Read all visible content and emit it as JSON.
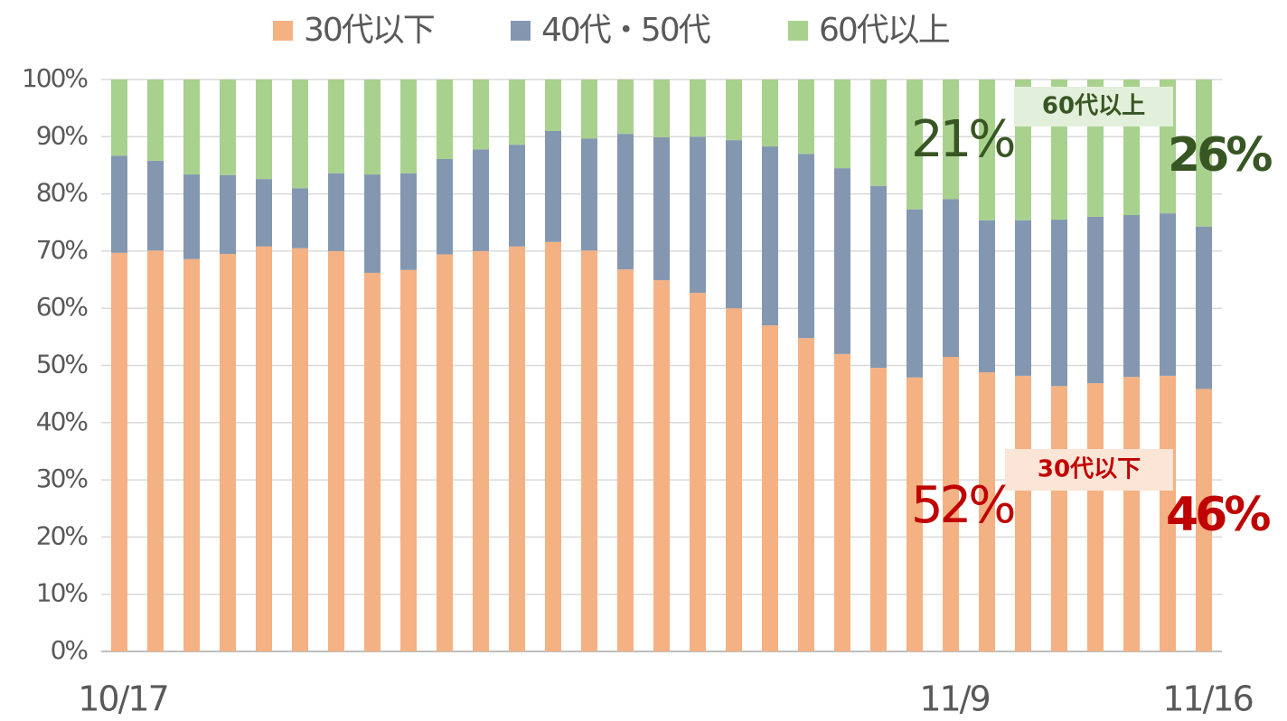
{
  "chart_data": {
    "type": "stacked_bar",
    "categories": [
      "10/17",
      null,
      null,
      null,
      null,
      null,
      null,
      null,
      null,
      null,
      null,
      null,
      null,
      null,
      null,
      null,
      null,
      null,
      null,
      null,
      null,
      null,
      null,
      "11/9",
      null,
      null,
      null,
      null,
      null,
      null,
      "11/16"
    ],
    "series": [
      {
        "name": "30代以下",
        "color": "#f4b183",
        "values": [
          69.7,
          70.1,
          68.6,
          69.5,
          70.8,
          70.5,
          70.0,
          66.2,
          66.7,
          69.4,
          70.0,
          70.8,
          71.6,
          70.1,
          66.8,
          64.9,
          62.7,
          60.0,
          57.0,
          54.8,
          52.0,
          49.6,
          47.9,
          51.5,
          48.8,
          48.2,
          46.4,
          46.9,
          48.0,
          48.2,
          45.9
        ]
      },
      {
        "name": "40代・50代",
        "color": "#8497b0",
        "values": [
          17.0,
          15.7,
          14.8,
          13.8,
          11.8,
          10.5,
          13.6,
          17.2,
          16.9,
          16.7,
          17.8,
          17.8,
          19.4,
          19.6,
          23.7,
          25.0,
          27.3,
          29.4,
          31.3,
          32.2,
          32.5,
          31.8,
          29.4,
          27.6,
          26.6,
          27.2,
          29.1,
          29.1,
          28.3,
          28.4,
          28.4
        ]
      },
      {
        "name": "60代以上",
        "color": "#a9d18e",
        "values": [
          13.3,
          14.2,
          16.6,
          16.7,
          17.4,
          19.0,
          16.4,
          16.6,
          16.4,
          13.9,
          12.2,
          11.4,
          9.0,
          10.3,
          9.5,
          10.1,
          10.0,
          10.6,
          11.7,
          13.0,
          15.5,
          18.6,
          22.7,
          20.9,
          24.6,
          24.6,
          24.5,
          24.0,
          23.7,
          23.4,
          25.7
        ]
      }
    ],
    "ylim": [
      0,
      100
    ],
    "yticks": [
      {
        "value": 0,
        "label": "0%"
      },
      {
        "value": 10,
        "label": "10%"
      },
      {
        "value": 20,
        "label": "20%"
      },
      {
        "value": 30,
        "label": "30%"
      },
      {
        "value": 40,
        "label": "40%"
      },
      {
        "value": 50,
        "label": "50%"
      },
      {
        "value": 60,
        "label": "60%"
      },
      {
        "value": 70,
        "label": "70%"
      },
      {
        "value": 80,
        "label": "80%"
      },
      {
        "value": 90,
        "label": "90%"
      },
      {
        "value": 100,
        "label": "100%"
      }
    ],
    "grid": true,
    "legend": "top",
    "annotations": [
      {
        "text": "60代以上",
        "color": "#375623",
        "background": "#e2efda"
      },
      {
        "text": "21%",
        "color": "#375623"
      },
      {
        "text": "26%",
        "color": "#375623"
      },
      {
        "text": "30代以下",
        "color": "#c00000",
        "background": "#fbe5d6"
      },
      {
        "text": "52%",
        "color": "#c00000"
      },
      {
        "text": "46%",
        "color": "#c00000"
      }
    ]
  }
}
